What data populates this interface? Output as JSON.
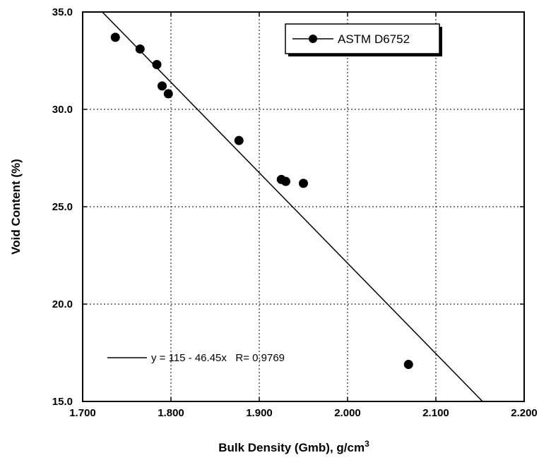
{
  "chart_data": {
    "type": "scatter",
    "title": "",
    "xlabel": "Bulk Density (Gmb), g/cm",
    "xlabel_superscript": "3",
    "ylabel": "Void Content (%)",
    "xlim": [
      1.7,
      2.2
    ],
    "ylim": [
      15.0,
      35.0
    ],
    "grid": true,
    "x_ticks": [
      1.7,
      1.8,
      1.9,
      2.0,
      2.1,
      2.2
    ],
    "x_tick_labels": [
      "1.700",
      "1.800",
      "1.900",
      "2.000",
      "2.100",
      "2.200"
    ],
    "y_ticks": [
      15.0,
      20.0,
      25.0,
      30.0,
      35.0
    ],
    "y_tick_labels": [
      "15.0",
      "20.0",
      "25.0",
      "30.0",
      "35.0"
    ],
    "legend_position": "top-right",
    "series": [
      {
        "name": "ASTM D6752",
        "marker": "circle",
        "color": "#000000",
        "x": [
          1.737,
          1.765,
          1.784,
          1.79,
          1.797,
          1.877,
          1.925,
          1.93,
          1.95,
          2.069
        ],
        "y": [
          33.7,
          33.1,
          32.3,
          31.2,
          30.8,
          28.4,
          26.4,
          26.3,
          26.2,
          16.9
        ]
      }
    ],
    "fit": {
      "label": "y = 115 - 46.45x   R= 0.9769",
      "intercept": 115,
      "slope": -46.45,
      "color": "#000000"
    }
  }
}
